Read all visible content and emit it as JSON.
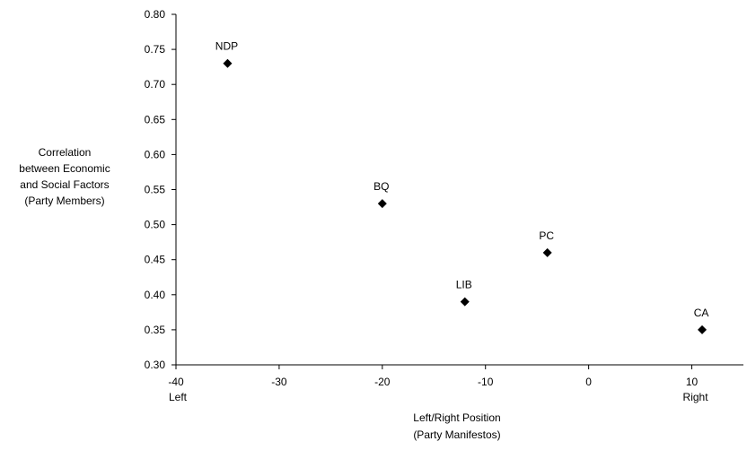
{
  "chart_data": {
    "type": "scatter",
    "title": "",
    "xlabel": [
      "Left/Right Position",
      "(Party Manifestos)"
    ],
    "ylabel": [
      "Correlation",
      "between Economic",
      "and Social Factors",
      "(Party Members)"
    ],
    "xlim": [
      -40,
      15
    ],
    "ylim": [
      0.3,
      0.8
    ],
    "xticks": [
      -40,
      -30,
      -20,
      -10,
      0,
      10
    ],
    "xtick_labels": [
      "-40",
      "-30",
      "-20",
      "-10",
      "0",
      "10"
    ],
    "yticks": [
      0.3,
      0.35,
      0.4,
      0.45,
      0.5,
      0.55,
      0.6,
      0.65,
      0.7,
      0.75,
      0.8
    ],
    "ytick_labels": [
      "0.30",
      "0.35",
      "0.40",
      "0.45",
      "0.50",
      "0.55",
      "0.60",
      "0.65",
      "0.70",
      "0.75",
      "0.80"
    ],
    "x_end_labels": {
      "left": "Left",
      "right": "Right"
    },
    "grid": false,
    "marker": "diamond",
    "points": [
      {
        "label": "NDP",
        "x": -35,
        "y": 0.73
      },
      {
        "label": "BQ",
        "x": -20,
        "y": 0.53
      },
      {
        "label": "LIB",
        "x": -12,
        "y": 0.39
      },
      {
        "label": "PC",
        "x": -4,
        "y": 0.46
      },
      {
        "label": "CA",
        "x": 11,
        "y": 0.35
      }
    ]
  }
}
